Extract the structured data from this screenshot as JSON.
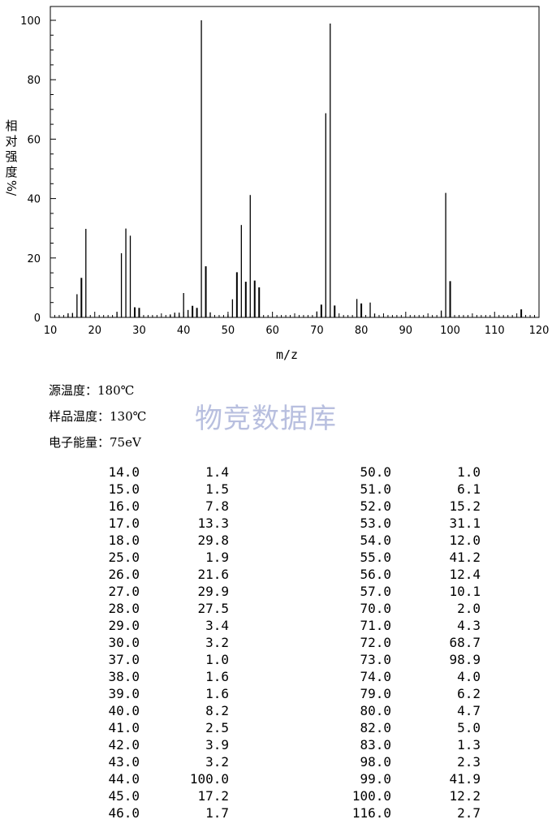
{
  "chart_data": {
    "type": "bar",
    "xlabel": "m/z",
    "ylabel": "相对强度/%",
    "xlim": [
      10,
      120
    ],
    "ylim": [
      0,
      100
    ],
    "xticks": [
      10,
      20,
      30,
      40,
      50,
      60,
      70,
      80,
      90,
      100,
      110,
      120
    ],
    "yticks": [
      0,
      20,
      40,
      60,
      80,
      100
    ],
    "x": [
      14.0,
      15.0,
      16.0,
      17.0,
      18.0,
      25.0,
      26.0,
      27.0,
      28.0,
      29.0,
      30.0,
      37.0,
      38.0,
      39.0,
      40.0,
      41.0,
      42.0,
      43.0,
      44.0,
      45.0,
      46.0,
      50.0,
      51.0,
      52.0,
      53.0,
      54.0,
      55.0,
      56.0,
      57.0,
      70.0,
      71.0,
      72.0,
      73.0,
      74.0,
      79.0,
      80.0,
      82.0,
      83.0,
      98.0,
      99.0,
      100.0,
      116.0
    ],
    "values": [
      1.4,
      1.5,
      7.8,
      13.3,
      29.8,
      1.9,
      21.6,
      29.9,
      27.5,
      3.4,
      3.2,
      1.0,
      1.6,
      1.6,
      8.2,
      2.5,
      3.9,
      3.2,
      100.0,
      17.2,
      1.7,
      1.0,
      6.1,
      15.2,
      31.1,
      12.0,
      41.2,
      12.4,
      10.1,
      2.0,
      4.3,
      68.7,
      98.9,
      4.0,
      6.2,
      4.7,
      5.0,
      1.3,
      2.3,
      41.9,
      12.2,
      2.7
    ]
  },
  "ylabel_chars": [
    "相",
    "对",
    "强",
    "度"
  ],
  "ylabel_unit": "%/",
  "params": [
    {
      "label": "源温度：",
      "value": "180℃"
    },
    {
      "label": "样品温度：",
      "value": "130℃"
    },
    {
      "label": "电子能量：",
      "value": "75eV"
    }
  ],
  "watermark": "物竞数据库",
  "peak_table": {
    "left": [
      [
        "14.0",
        "1.4"
      ],
      [
        "15.0",
        "1.5"
      ],
      [
        "16.0",
        "7.8"
      ],
      [
        "17.0",
        "13.3"
      ],
      [
        "18.0",
        "29.8"
      ],
      [
        "25.0",
        "1.9"
      ],
      [
        "26.0",
        "21.6"
      ],
      [
        "27.0",
        "29.9"
      ],
      [
        "28.0",
        "27.5"
      ],
      [
        "29.0",
        "3.4"
      ],
      [
        "30.0",
        "3.2"
      ],
      [
        "37.0",
        "1.0"
      ],
      [
        "38.0",
        "1.6"
      ],
      [
        "39.0",
        "1.6"
      ],
      [
        "40.0",
        "8.2"
      ],
      [
        "41.0",
        "2.5"
      ],
      [
        "42.0",
        "3.9"
      ],
      [
        "43.0",
        "3.2"
      ],
      [
        "44.0",
        "100.0"
      ],
      [
        "45.0",
        "17.2"
      ],
      [
        "46.0",
        "1.7"
      ]
    ],
    "right": [
      [
        "50.0",
        "1.0"
      ],
      [
        "51.0",
        "6.1"
      ],
      [
        "52.0",
        "15.2"
      ],
      [
        "53.0",
        "31.1"
      ],
      [
        "54.0",
        "12.0"
      ],
      [
        "55.0",
        "41.2"
      ],
      [
        "56.0",
        "12.4"
      ],
      [
        "57.0",
        "10.1"
      ],
      [
        "70.0",
        "2.0"
      ],
      [
        "71.0",
        "4.3"
      ],
      [
        "72.0",
        "68.7"
      ],
      [
        "73.0",
        "98.9"
      ],
      [
        "74.0",
        "4.0"
      ],
      [
        "79.0",
        "6.2"
      ],
      [
        "80.0",
        "4.7"
      ],
      [
        "82.0",
        "5.0"
      ],
      [
        "83.0",
        "1.3"
      ],
      [
        "98.0",
        "2.3"
      ],
      [
        "99.0",
        "41.9"
      ],
      [
        "100.0",
        "12.2"
      ],
      [
        "116.0",
        "2.7"
      ]
    ]
  }
}
